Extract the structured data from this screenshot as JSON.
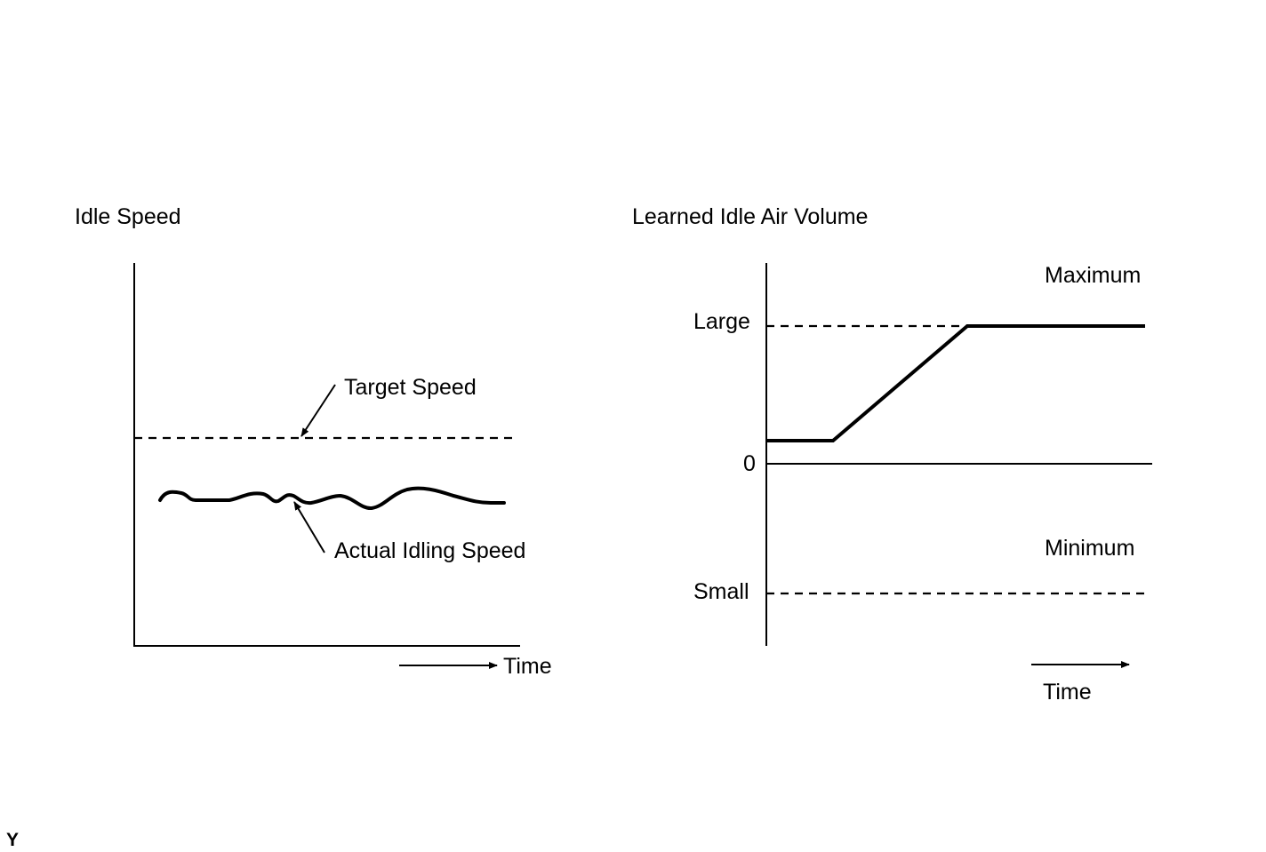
{
  "left_chart": {
    "title": "Idle Speed",
    "target_label": "Target Speed",
    "actual_label": "Actual Idling Speed",
    "time_label": "Time"
  },
  "right_chart": {
    "title": "Learned Idle Air Volume",
    "maximum_label": "Maximum",
    "large_label": "Large",
    "zero_label": "0",
    "minimum_label": "Minimum",
    "small_label": "Small",
    "time_label": "Time"
  },
  "corner_mark": "Y",
  "colors": {
    "ink": "#000000",
    "background": "#ffffff"
  }
}
